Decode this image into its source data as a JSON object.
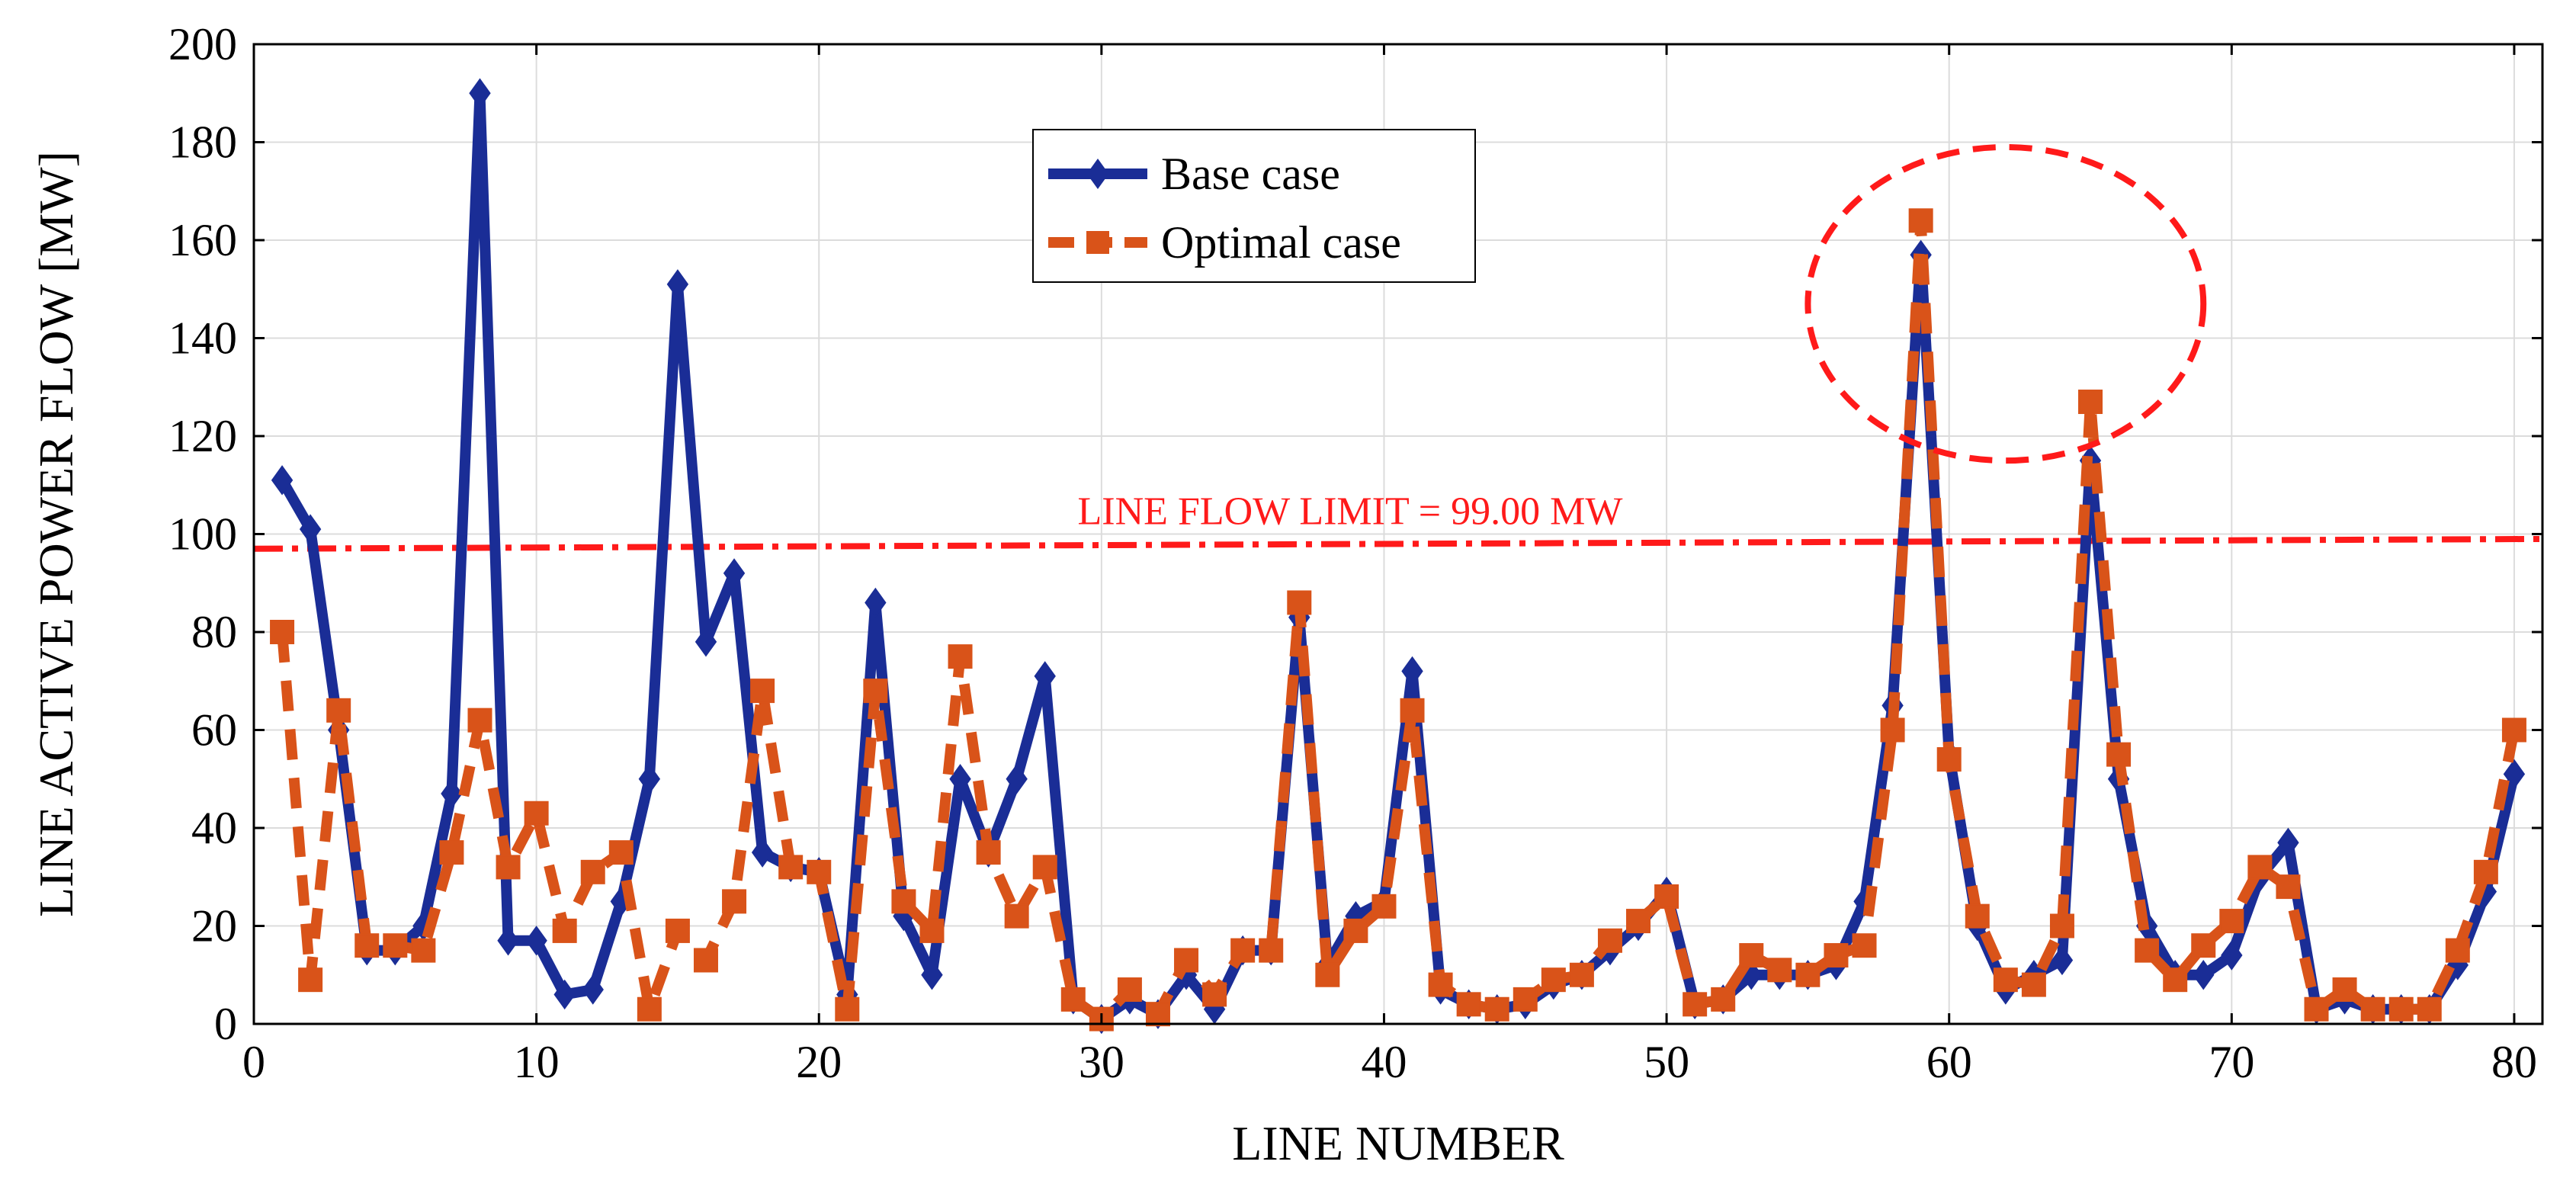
{
  "chart_data": {
    "type": "line",
    "title": "",
    "xlabel": "LINE NUMBER",
    "ylabel": "LINE ACTIVE POWER FLOW [MW]",
    "xlim": [
      0,
      81
    ],
    "ylim": [
      0,
      200
    ],
    "xticks": [
      0,
      10,
      20,
      30,
      40,
      50,
      60,
      70,
      80
    ],
    "yticks": [
      0,
      20,
      40,
      60,
      80,
      100,
      120,
      140,
      160,
      180,
      200
    ],
    "grid": true,
    "legend_position": "top-center",
    "x": [
      1,
      2,
      3,
      4,
      5,
      6,
      7,
      8,
      9,
      10,
      11,
      12,
      13,
      14,
      15,
      16,
      17,
      18,
      19,
      20,
      21,
      22,
      23,
      24,
      25,
      26,
      27,
      28,
      29,
      30,
      31,
      32,
      33,
      34,
      35,
      36,
      37,
      38,
      39,
      40,
      41,
      42,
      43,
      44,
      45,
      46,
      47,
      48,
      49,
      50,
      51,
      52,
      53,
      54,
      55,
      56,
      57,
      58,
      59,
      60,
      61,
      62,
      63,
      64,
      65,
      66,
      67,
      68,
      69,
      70,
      71,
      72,
      73,
      74,
      75,
      76,
      77,
      78,
      79,
      80
    ],
    "series": [
      {
        "name": "Base case",
        "color": "#1a2d96",
        "style": "solid",
        "marker": "diamond",
        "values": [
          111,
          101,
          60,
          15,
          15,
          20,
          47,
          190,
          17,
          17,
          6,
          7,
          25,
          50,
          151,
          78,
          92,
          35,
          32,
          31,
          6,
          86,
          22,
          10,
          50,
          35,
          50,
          71,
          5,
          1,
          5,
          2,
          10,
          3,
          15,
          15,
          83,
          12,
          22,
          25,
          72,
          7,
          4,
          3,
          4,
          8,
          10,
          15,
          20,
          27,
          4,
          5,
          10,
          10,
          10,
          12,
          25,
          65,
          157,
          55,
          20,
          7,
          10,
          13,
          115,
          50,
          20,
          10,
          10,
          14,
          30,
          37,
          3,
          5,
          3,
          3,
          3,
          12,
          27,
          51
        ]
      },
      {
        "name": "Optimal case",
        "color": "#d95319",
        "style": "dashed",
        "marker": "square",
        "values": [
          80,
          9,
          64,
          16,
          16,
          15,
          35,
          62,
          32,
          43,
          19,
          31,
          35,
          3,
          19,
          13,
          25,
          68,
          32,
          31,
          3,
          68,
          25,
          19,
          75,
          35,
          22,
          32,
          5,
          1,
          7,
          2,
          13,
          6,
          15,
          15,
          86,
          10,
          19,
          24,
          64,
          8,
          4,
          3,
          5,
          9,
          10,
          17,
          21,
          26,
          4,
          5,
          14,
          11,
          10,
          14,
          16,
          60,
          164,
          54,
          22,
          9,
          8,
          20,
          127,
          55,
          15,
          9,
          16,
          21,
          32,
          28,
          3,
          7,
          3,
          3,
          3,
          15,
          31,
          60
        ]
      }
    ],
    "limit_line": {
      "label": "LINE FLOW LIMIT = 99.00 MW",
      "value": 99,
      "start_value": 97,
      "color": "#ff1a1a"
    },
    "annotation": {
      "shape": "dashed ellipse",
      "color": "#ff1a1a",
      "center_x": 62,
      "center_y": 147,
      "radius_x": 7,
      "radius_y": 32
    }
  }
}
